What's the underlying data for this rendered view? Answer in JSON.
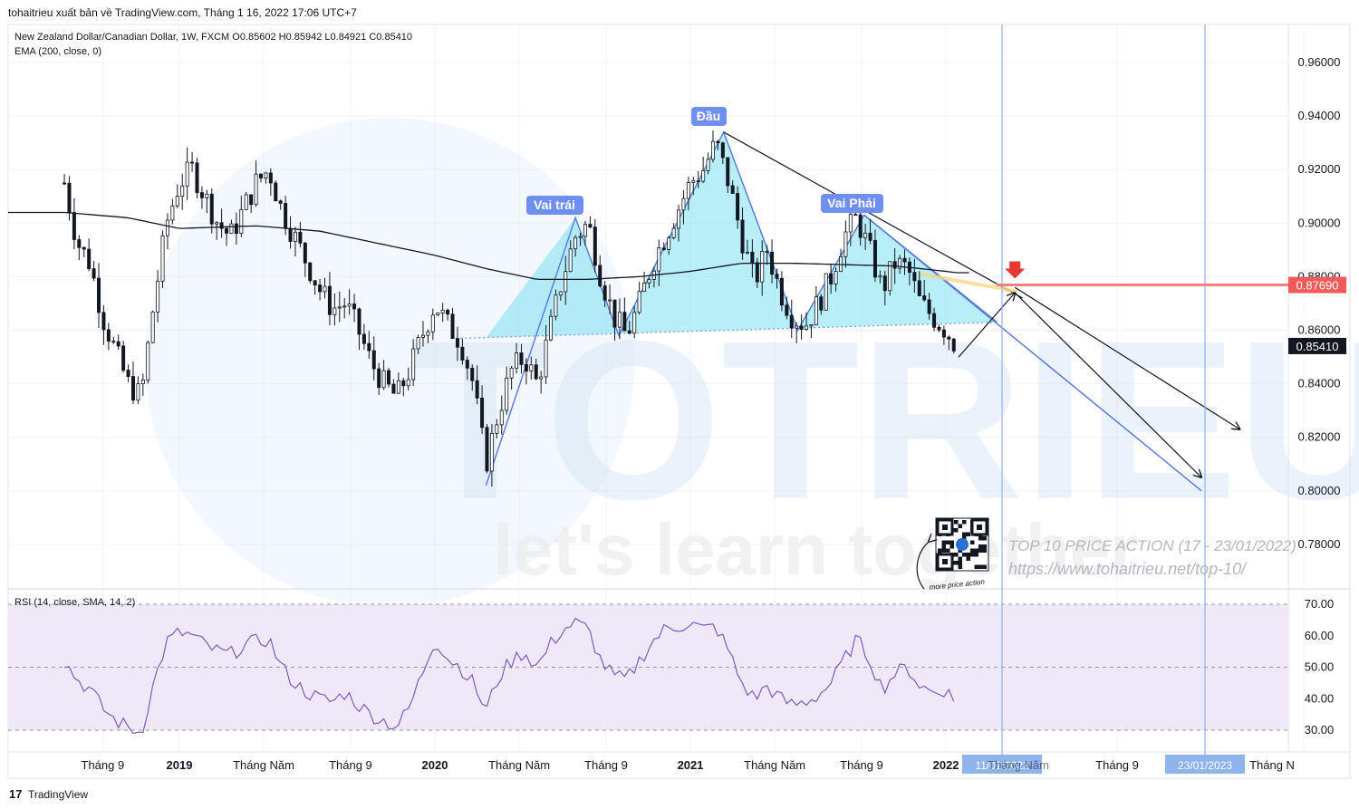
{
  "header": {
    "publisher_line": "tohaitrieu xuất bản về TradingView.com, Tháng 1 16, 2022 17:06 UTC+7",
    "symbol_line": "New Zealand Dollar/Canadian Dollar, 1W, FXCM  O0.85602  H0.85942  L0.84921  C0.85410",
    "indicator_line": "EMA (200, close, 0)"
  },
  "annotations": {
    "left_shoulder": "Vai trái",
    "head": "Đầu",
    "right_shoulder": "Vai Phải"
  },
  "watermark": {
    "brand": "TOTRIEU",
    "slogan": "let's learn together",
    "promo_title": "TOP 10 PRICE ACTION (17 - 23/01/2022)",
    "promo_url": "https://www.tohaitrieu.net/top-10/",
    "qr_caption": "more price action"
  },
  "price_axis": {
    "ticks": [
      "0.96000",
      "0.94000",
      "0.92000",
      "0.90000",
      "0.88000",
      "0.86000",
      "0.84000",
      "0.82000",
      "0.80000",
      "0.78000"
    ],
    "target_label": "0.87690",
    "last_label": "0.85410"
  },
  "time_axis": {
    "labels": [
      "Tháng 9",
      "2019",
      "Tháng Năm",
      "Tháng 9",
      "2020",
      "Tháng Năm",
      "Tháng 9",
      "2021",
      "Tháng Năm",
      "Tháng 9",
      "2022",
      "Tháng 9",
      "Tháng N"
    ],
    "range_start": "11/01/2022",
    "range_start_overlap": "Tháng Năm",
    "range_end": "23/01/2023"
  },
  "rsi": {
    "title": "RSI (14, close, SMA, 14, 2)",
    "ticks": [
      "70.00",
      "60.00",
      "50.00",
      "40.00",
      "30.00"
    ]
  },
  "footer": {
    "logo_text": "TradingView"
  },
  "colors": {
    "up": "#ffffff",
    "down": "#131722",
    "pattern_fill": "#7ee0f0",
    "pattern_line": "#5b7fd8",
    "target_line": "#f47f7f",
    "target_badge": "#f05a5a",
    "label_bg": "#6f8ff0",
    "rsi_band": "#efe8f8",
    "rsi_line": "#7b5cbf"
  },
  "chart_data": {
    "type": "candlestick",
    "title": "New Zealand Dollar/Canadian Dollar, 1W, FXCM",
    "ohlc_last": {
      "open": 0.85602,
      "high": 0.85942,
      "low": 0.84921,
      "close": 0.8541
    },
    "ylim": [
      0.77,
      0.97
    ],
    "close_path": [
      [
        2018.55,
        0.915
      ],
      [
        2018.6,
        0.893
      ],
      [
        2018.65,
        0.885
      ],
      [
        2018.7,
        0.865
      ],
      [
        2018.75,
        0.852
      ],
      [
        2018.8,
        0.84
      ],
      [
        2018.85,
        0.835
      ],
      [
        2018.9,
        0.87
      ],
      [
        2018.95,
        0.9
      ],
      [
        2019.0,
        0.915
      ],
      [
        2019.05,
        0.92
      ],
      [
        2019.1,
        0.91
      ],
      [
        2019.15,
        0.9
      ],
      [
        2019.2,
        0.895
      ],
      [
        2019.25,
        0.905
      ],
      [
        2019.3,
        0.915
      ],
      [
        2019.35,
        0.92
      ],
      [
        2019.4,
        0.905
      ],
      [
        2019.45,
        0.895
      ],
      [
        2019.5,
        0.885
      ],
      [
        2019.55,
        0.875
      ],
      [
        2019.6,
        0.868
      ],
      [
        2019.65,
        0.87
      ],
      [
        2019.7,
        0.86
      ],
      [
        2019.75,
        0.848
      ],
      [
        2019.8,
        0.84
      ],
      [
        2019.85,
        0.835
      ],
      [
        2019.9,
        0.845
      ],
      [
        2019.95,
        0.858
      ],
      [
        2020.0,
        0.87
      ],
      [
        2020.05,
        0.862
      ],
      [
        2020.1,
        0.856
      ],
      [
        2020.15,
        0.84
      ],
      [
        2020.2,
        0.81
      ],
      [
        2020.25,
        0.83
      ],
      [
        2020.3,
        0.845
      ],
      [
        2020.35,
        0.85
      ],
      [
        2020.4,
        0.84
      ],
      [
        2020.45,
        0.86
      ],
      [
        2020.5,
        0.88
      ],
      [
        2020.55,
        0.895
      ],
      [
        2020.6,
        0.9
      ],
      [
        2020.65,
        0.88
      ],
      [
        2020.7,
        0.865
      ],
      [
        2020.75,
        0.858
      ],
      [
        2020.8,
        0.87
      ],
      [
        2020.85,
        0.885
      ],
      [
        2020.9,
        0.895
      ],
      [
        2020.95,
        0.905
      ],
      [
        2021.0,
        0.915
      ],
      [
        2021.05,
        0.92
      ],
      [
        2021.1,
        0.93
      ],
      [
        2021.15,
        0.915
      ],
      [
        2021.2,
        0.895
      ],
      [
        2021.25,
        0.878
      ],
      [
        2021.3,
        0.89
      ],
      [
        2021.35,
        0.875
      ],
      [
        2021.4,
        0.865
      ],
      [
        2021.45,
        0.862
      ],
      [
        2021.5,
        0.87
      ],
      [
        2021.55,
        0.88
      ],
      [
        2021.6,
        0.895
      ],
      [
        2021.65,
        0.902
      ],
      [
        2021.7,
        0.89
      ],
      [
        2021.75,
        0.875
      ],
      [
        2021.8,
        0.885
      ],
      [
        2021.85,
        0.883
      ],
      [
        2021.9,
        0.87
      ],
      [
        2021.95,
        0.865
      ],
      [
        2022.0,
        0.86
      ],
      [
        2022.04,
        0.8541
      ]
    ],
    "ema200_path": [
      [
        2018.55,
        0.904
      ],
      [
        2018.8,
        0.902
      ],
      [
        2019.0,
        0.898
      ],
      [
        2019.3,
        0.899
      ],
      [
        2019.55,
        0.897
      ],
      [
        2019.8,
        0.892
      ],
      [
        2020.0,
        0.888
      ],
      [
        2020.2,
        0.883
      ],
      [
        2020.4,
        0.879
      ],
      [
        2020.6,
        0.879
      ],
      [
        2020.8,
        0.88
      ],
      [
        2021.0,
        0.882
      ],
      [
        2021.2,
        0.885
      ],
      [
        2021.4,
        0.885
      ],
      [
        2021.6,
        0.8845
      ],
      [
        2021.8,
        0.884
      ],
      [
        2022.0,
        0.882
      ],
      [
        2022.04,
        0.8815
      ]
    ],
    "head_and_shoulders": {
      "left_shoulder": [
        2020.55,
        0.902
      ],
      "head": [
        2021.13,
        0.934
      ],
      "right_shoulder": [
        2021.68,
        0.903
      ],
      "neckline_start": [
        2020.1,
        0.857
      ],
      "neckline_end": [
        2022.2,
        0.863
      ]
    },
    "resistance_line": [
      [
        2021.13,
        0.934
      ],
      [
        2022.3,
        0.872
      ]
    ],
    "target_price": 0.8769,
    "projection_arrows": [
      [
        [
          2022.05,
          0.85
        ],
        [
          2022.27,
          0.874
        ]
      ],
      [
        [
          2022.27,
          0.874
        ],
        [
          2023.0,
          0.805
        ]
      ],
      [
        [
          2022.27,
          0.876
        ],
        [
          2023.15,
          0.823
        ]
      ]
    ],
    "rsi_ylim": [
      25,
      75
    ],
    "rsi_bands": [
      30,
      50,
      70
    ],
    "rsi_path": [
      [
        2018.55,
        52
      ],
      [
        2018.6,
        46
      ],
      [
        2018.65,
        43
      ],
      [
        2018.7,
        37
      ],
      [
        2018.75,
        33
      ],
      [
        2018.8,
        31
      ],
      [
        2018.85,
        29
      ],
      [
        2018.9,
        45
      ],
      [
        2018.95,
        58
      ],
      [
        2019.0,
        61
      ],
      [
        2019.05,
        60
      ],
      [
        2019.1,
        57
      ],
      [
        2019.15,
        55
      ],
      [
        2019.2,
        54
      ],
      [
        2019.25,
        57
      ],
      [
        2019.3,
        58
      ],
      [
        2019.35,
        59
      ],
      [
        2019.4,
        50
      ],
      [
        2019.45,
        45
      ],
      [
        2019.5,
        42
      ],
      [
        2019.55,
        40
      ],
      [
        2019.6,
        39
      ],
      [
        2019.65,
        42
      ],
      [
        2019.7,
        38
      ],
      [
        2019.75,
        35
      ],
      [
        2019.8,
        33
      ],
      [
        2019.85,
        31
      ],
      [
        2019.9,
        37
      ],
      [
        2019.95,
        48
      ],
      [
        2020.0,
        59
      ],
      [
        2020.05,
        53
      ],
      [
        2020.1,
        50
      ],
      [
        2020.15,
        45
      ],
      [
        2020.2,
        36
      ],
      [
        2020.25,
        47
      ],
      [
        2020.3,
        52
      ],
      [
        2020.35,
        55
      ],
      [
        2020.4,
        50
      ],
      [
        2020.45,
        57
      ],
      [
        2020.5,
        62
      ],
      [
        2020.55,
        64
      ],
      [
        2020.6,
        62
      ],
      [
        2020.65,
        52
      ],
      [
        2020.7,
        47
      ],
      [
        2020.75,
        46
      ],
      [
        2020.8,
        52
      ],
      [
        2020.85,
        58
      ],
      [
        2020.9,
        62
      ],
      [
        2020.95,
        63
      ],
      [
        2021.0,
        64
      ],
      [
        2021.05,
        62
      ],
      [
        2021.1,
        63
      ],
      [
        2021.15,
        55
      ],
      [
        2021.2,
        45
      ],
      [
        2021.25,
        40
      ],
      [
        2021.3,
        44
      ],
      [
        2021.35,
        40
      ],
      [
        2021.4,
        38
      ],
      [
        2021.45,
        39
      ],
      [
        2021.5,
        41
      ],
      [
        2021.55,
        45
      ],
      [
        2021.6,
        52
      ],
      [
        2021.65,
        59
      ],
      [
        2021.7,
        53
      ],
      [
        2021.75,
        43
      ],
      [
        2021.8,
        48
      ],
      [
        2021.85,
        50
      ],
      [
        2021.9,
        44
      ],
      [
        2021.95,
        42
      ],
      [
        2022.0,
        43
      ],
      [
        2022.04,
        38
      ]
    ]
  }
}
